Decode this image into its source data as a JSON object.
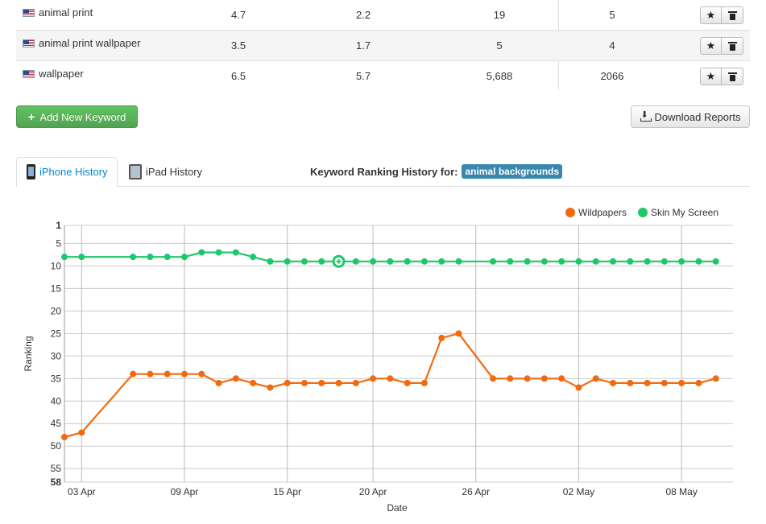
{
  "keywords": [
    {
      "keyword": "animal print",
      "v1": "4.7",
      "v2": "2.2",
      "v3": "19",
      "v4": "5"
    },
    {
      "keyword": "animal print wallpaper",
      "v1": "3.5",
      "v2": "1.7",
      "v3": "5",
      "v4": "4"
    },
    {
      "keyword": "wallpaper",
      "v1": "6.5",
      "v2": "5.7",
      "v3": "5,688",
      "v4": "2066"
    }
  ],
  "icons": {
    "flag": "us-flag-icon",
    "star": "star-icon",
    "trash": "trash-icon",
    "plus": "plus-icon",
    "download": "download-icon",
    "iphone": "iphone-icon",
    "ipad": "ipad-icon"
  },
  "buttons": {
    "add_keyword": "Add New Keyword",
    "download_reports": "Download Reports"
  },
  "tabs": [
    {
      "label": "iPhone History",
      "active": true
    },
    {
      "label": "iPad History",
      "active": false
    }
  ],
  "history": {
    "title": "Keyword Ranking History for:",
    "keyword": "animal backgrounds"
  },
  "colors": {
    "green_button": "#5bb75b",
    "tab_active": "#0088cc",
    "badge": "#3a87ad",
    "wildpapers": "#f26a10",
    "skin_my_screen": "#1ec86a"
  },
  "chart_data": {
    "type": "line",
    "xlabel": "Date",
    "ylabel": "Ranking",
    "y_reversed": true,
    "ylim": [
      1,
      58
    ],
    "y_ticks": [
      1,
      5,
      10,
      15,
      20,
      25,
      30,
      35,
      40,
      45,
      50,
      55,
      58
    ],
    "x_tick_labels": [
      "03 Apr",
      "09 Apr",
      "15 Apr",
      "20 Apr",
      "26 Apr",
      "02 May",
      "08 May"
    ],
    "x_tick_dates": [
      "2013-04-03",
      "2013-04-09",
      "2013-04-15",
      "2013-04-20",
      "2013-04-26",
      "2013-05-02",
      "2013-05-08"
    ],
    "xlim": [
      "2013-04-02",
      "2013-05-11"
    ],
    "grid": true,
    "legend_position": "top-right",
    "series": [
      {
        "name": "Wildpapers",
        "color": "#f26a10",
        "points": [
          [
            "2013-04-02",
            48
          ],
          [
            "2013-04-03",
            47
          ],
          [
            "2013-04-06",
            34
          ],
          [
            "2013-04-07",
            34
          ],
          [
            "2013-04-08",
            34
          ],
          [
            "2013-04-09",
            34
          ],
          [
            "2013-04-10",
            34
          ],
          [
            "2013-04-11",
            36
          ],
          [
            "2013-04-12",
            35
          ],
          [
            "2013-04-13",
            36
          ],
          [
            "2013-04-14",
            37
          ],
          [
            "2013-04-15",
            36
          ],
          [
            "2013-04-16",
            36
          ],
          [
            "2013-04-17",
            36
          ],
          [
            "2013-04-18",
            36
          ],
          [
            "2013-04-19",
            36
          ],
          [
            "2013-04-20",
            35
          ],
          [
            "2013-04-21",
            35
          ],
          [
            "2013-04-22",
            36
          ],
          [
            "2013-04-23",
            36
          ],
          [
            "2013-04-24",
            26
          ],
          [
            "2013-04-25",
            25
          ],
          [
            "2013-04-27",
            35
          ],
          [
            "2013-04-28",
            35
          ],
          [
            "2013-04-29",
            35
          ],
          [
            "2013-04-30",
            35
          ],
          [
            "2013-05-01",
            35
          ],
          [
            "2013-05-02",
            37
          ],
          [
            "2013-05-03",
            35
          ],
          [
            "2013-05-04",
            36
          ],
          [
            "2013-05-05",
            36
          ],
          [
            "2013-05-06",
            36
          ],
          [
            "2013-05-07",
            36
          ],
          [
            "2013-05-08",
            36
          ],
          [
            "2013-05-09",
            36
          ],
          [
            "2013-05-10",
            35
          ]
        ]
      },
      {
        "name": "Skin My Screen",
        "color": "#1ec86a",
        "points": [
          [
            "2013-04-02",
            8
          ],
          [
            "2013-04-03",
            8
          ],
          [
            "2013-04-06",
            8
          ],
          [
            "2013-04-07",
            8
          ],
          [
            "2013-04-08",
            8
          ],
          [
            "2013-04-09",
            8
          ],
          [
            "2013-04-10",
            7
          ],
          [
            "2013-04-11",
            7
          ],
          [
            "2013-04-12",
            7
          ],
          [
            "2013-04-13",
            8
          ],
          [
            "2013-04-14",
            9
          ],
          [
            "2013-04-15",
            9
          ],
          [
            "2013-04-16",
            9
          ],
          [
            "2013-04-17",
            9
          ],
          [
            "2013-04-18",
            9
          ],
          [
            "2013-04-19",
            9
          ],
          [
            "2013-04-20",
            9
          ],
          [
            "2013-04-21",
            9
          ],
          [
            "2013-04-22",
            9
          ],
          [
            "2013-04-23",
            9
          ],
          [
            "2013-04-24",
            9
          ],
          [
            "2013-04-25",
            9
          ],
          [
            "2013-04-27",
            9
          ],
          [
            "2013-04-28",
            9
          ],
          [
            "2013-04-29",
            9
          ],
          [
            "2013-04-30",
            9
          ],
          [
            "2013-05-01",
            9
          ],
          [
            "2013-05-02",
            9
          ],
          [
            "2013-05-03",
            9
          ],
          [
            "2013-05-04",
            9
          ],
          [
            "2013-05-05",
            9
          ],
          [
            "2013-05-06",
            9
          ],
          [
            "2013-05-07",
            9
          ],
          [
            "2013-05-08",
            9
          ],
          [
            "2013-05-09",
            9
          ],
          [
            "2013-05-10",
            9
          ]
        ],
        "highlight": [
          "2013-04-18",
          9
        ]
      }
    ]
  }
}
